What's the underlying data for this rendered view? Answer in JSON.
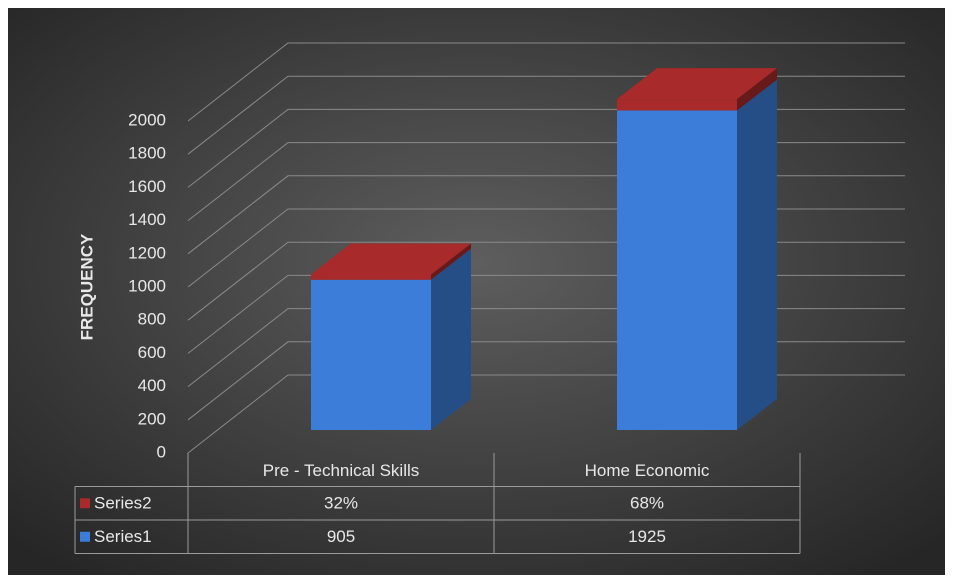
{
  "chart_data": {
    "type": "bar3d_stacked",
    "y_axis_label": "FREQUENCY",
    "categories": [
      "Pre - Technical Skills",
      "Home Economic"
    ],
    "series": [
      {
        "name": "Series1",
        "color": "#3b7dd8",
        "values": [
          905,
          1925
        ]
      },
      {
        "name": "Series2",
        "color": "#a82a2a",
        "values": [
          32,
          68
        ],
        "value_labels": [
          "32%",
          "68%"
        ]
      }
    ],
    "ylim": [
      0,
      2000
    ],
    "yticks": [
      0,
      200,
      400,
      600,
      800,
      1000,
      1200,
      1400,
      1600,
      1800,
      2000
    ],
    "grid": true,
    "data_table": true
  }
}
